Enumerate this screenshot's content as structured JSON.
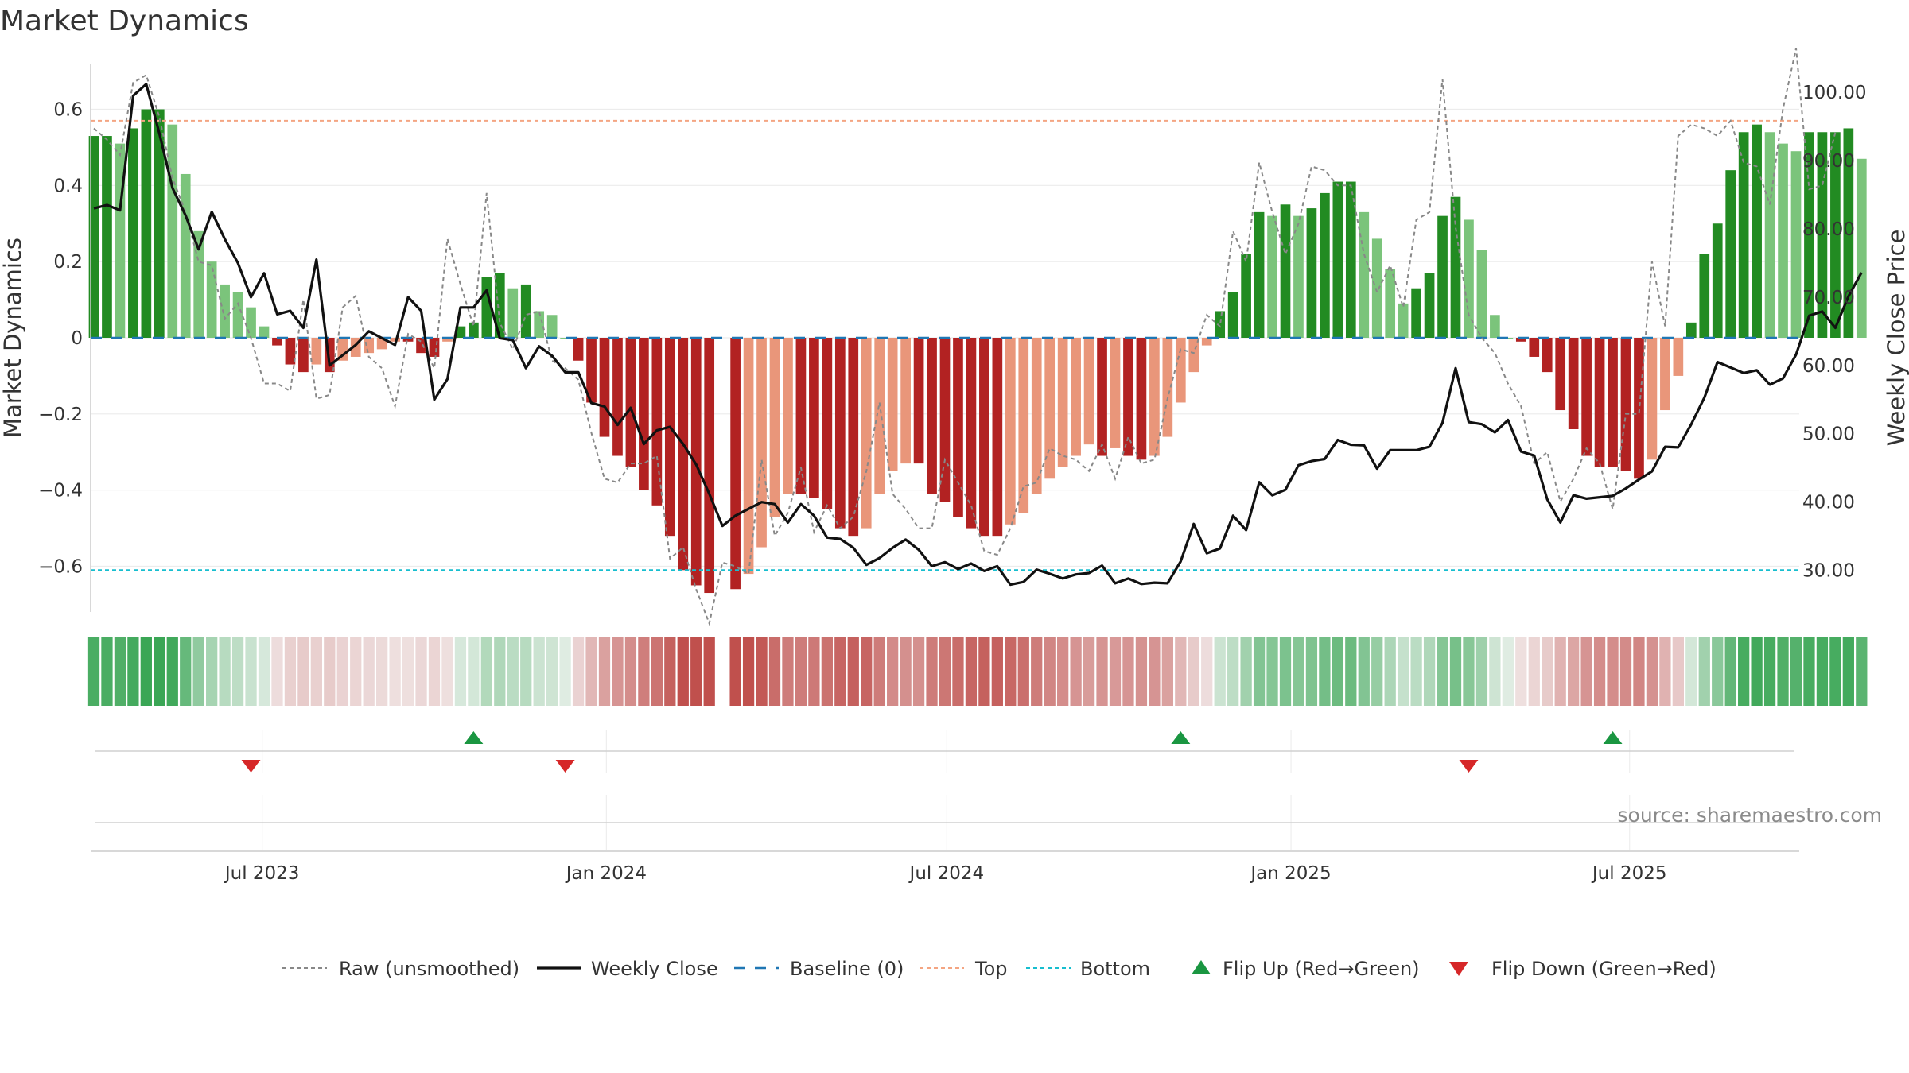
{
  "title": "Market Dynamics",
  "colors": {
    "strong_green": "#228B22",
    "light_green": "#7BC47B",
    "strong_red": "#B22222",
    "light_red": "#E9967A",
    "close": "#111111",
    "raw": "#888888",
    "baseline": "#1f77b4",
    "top": "#f4a582",
    "bottom": "#17becf",
    "flip_up": "#1a9641",
    "flip_down": "#d62728"
  },
  "chart_data": {
    "type": "bar",
    "x_start": "2023-04-02",
    "x_end": "2025-09-28",
    "left_axis": {
      "label": "Market Dynamics",
      "ylim": [
        -0.72,
        0.72
      ],
      "ticks": [
        -0.6,
        -0.4,
        -0.2,
        0,
        0.2,
        0.4,
        0.6
      ],
      "tick_labels": [
        "−0.6",
        "−0.4",
        "−0.2",
        "0",
        "0.2",
        "0.4",
        "0.6"
      ]
    },
    "right_axis": {
      "label": "Weekly Close Price",
      "ylim": [
        23.9,
        104.2
      ],
      "ticks": [
        30,
        40,
        50,
        60,
        70,
        80,
        90,
        100
      ],
      "tick_labels": [
        "30.00",
        "40.00",
        "50.00",
        "60.00",
        "70.00",
        "80.00",
        "90.00",
        "100.00"
      ]
    },
    "x_ticks": [
      {
        "date": "2023-07-01",
        "label": "Jul 2023"
      },
      {
        "date": "2024-01-01",
        "label": "Jan 2024"
      },
      {
        "date": "2024-07-01",
        "label": "Jul 2024"
      },
      {
        "date": "2025-01-01",
        "label": "Jan 2025"
      },
      {
        "date": "2025-07-01",
        "label": "Jul 2025"
      }
    ],
    "top_level": 0.57,
    "bottom_level": -0.61,
    "grid": true,
    "dynamics_values": [
      0.53,
      0.53,
      0.51,
      0.55,
      0.6,
      0.6,
      0.56,
      0.43,
      0.28,
      0.2,
      0.14,
      0.12,
      0.08,
      0.03,
      -0.02,
      -0.07,
      -0.09,
      -0.07,
      -0.09,
      -0.06,
      -0.05,
      -0.04,
      -0.03,
      -0.01,
      -0.01,
      -0.04,
      -0.05,
      -0.01,
      0.03,
      0.04,
      0.16,
      0.17,
      0.13,
      0.14,
      0.07,
      0.06,
      0,
      -0.06,
      -0.17,
      -0.26,
      -0.31,
      -0.34,
      -0.4,
      -0.44,
      -0.52,
      -0.61,
      -0.65,
      -0.67,
      null,
      -0.66,
      -0.62,
      -0.55,
      -0.47,
      -0.41,
      -0.41,
      -0.42,
      -0.45,
      -0.5,
      -0.52,
      -0.5,
      -0.41,
      -0.35,
      -0.33,
      -0.33,
      -0.41,
      -0.43,
      -0.47,
      -0.5,
      -0.52,
      -0.52,
      -0.49,
      -0.46,
      -0.41,
      -0.37,
      -0.34,
      -0.31,
      -0.28,
      -0.31,
      -0.29,
      -0.31,
      -0.32,
      -0.31,
      -0.26,
      -0.17,
      -0.09,
      -0.02,
      0.07,
      0.12,
      0.22,
      0.33,
      0.32,
      0.35,
      0.32,
      0.34,
      0.38,
      0.41,
      0.41,
      0.33,
      0.26,
      0.18,
      0.09,
      0.13,
      0.17,
      0.32,
      0.37,
      0.31,
      0.23,
      0.06,
      0,
      -0.01,
      -0.05,
      -0.09,
      -0.19,
      -0.24,
      -0.31,
      -0.34,
      -0.34,
      -0.35,
      -0.37,
      -0.32,
      -0.19,
      -0.1,
      0.04,
      0.22,
      0.3,
      0.44,
      0.54,
      0.56,
      0.54,
      0.51,
      0.49,
      0.54,
      0.54,
      0.54,
      0.55,
      0.47
    ],
    "raw_values": [
      0.55,
      0.52,
      0.48,
      0.67,
      0.69,
      0.58,
      0.42,
      0.33,
      0.2,
      0.19,
      0.05,
      0.09,
      0,
      -0.12,
      -0.12,
      -0.14,
      0.1,
      -0.16,
      -0.15,
      0.08,
      0.11,
      -0.05,
      -0.08,
      -0.18,
      0.01,
      -0.01,
      -0.08,
      0.26,
      0.14,
      0.03,
      0.38,
      0.04,
      -0.03,
      0.06,
      0.07,
      -0.06,
      -0.08,
      -0.11,
      -0.25,
      -0.37,
      -0.38,
      -0.33,
      -0.33,
      -0.31,
      -0.58,
      -0.55,
      -0.66,
      -0.75,
      -0.59,
      -0.6,
      -0.62,
      -0.32,
      -0.52,
      -0.46,
      -0.34,
      -0.51,
      -0.44,
      -0.5,
      -0.47,
      -0.35,
      -0.17,
      -0.41,
      -0.45,
      -0.5,
      -0.5,
      -0.32,
      -0.38,
      -0.44,
      -0.56,
      -0.57,
      -0.5,
      -0.39,
      -0.38,
      -0.29,
      -0.31,
      -0.32,
      -0.35,
      -0.28,
      -0.37,
      -0.26,
      -0.33,
      -0.32,
      -0.16,
      -0.03,
      -0.04,
      0.06,
      0.03,
      0.28,
      0.2,
      0.46,
      0.33,
      0.22,
      0.3,
      0.45,
      0.44,
      0.4,
      0.4,
      0.22,
      0.12,
      0.19,
      0.08,
      0.31,
      0.33,
      0.68,
      0.29,
      0.06,
      0.0,
      -0.04,
      -0.12,
      -0.18,
      -0.33,
      -0.3,
      -0.43,
      -0.37,
      -0.29,
      -0.33,
      -0.45,
      -0.2,
      -0.2,
      0.2,
      0.03,
      0.53,
      0.56,
      0.55,
      0.53,
      0.57,
      0.46,
      0.45,
      0.35,
      0.6,
      0.76,
      0.39,
      0.4,
      0.54
    ],
    "close_values": [
      83,
      83.5,
      82.7,
      99.5,
      101.2,
      94,
      86,
      82,
      77,
      82.5,
      78.5,
      75,
      70,
      73.5,
      67.5,
      68,
      65.5,
      75.5,
      60,
      61.5,
      63,
      65,
      64,
      63,
      70,
      68,
      55,
      58,
      68.5,
      68.5,
      71,
      64,
      63.7,
      59.6,
      62.8,
      61.4,
      59,
      59,
      54.5,
      54,
      51.3,
      53.8,
      48.5,
      50.5,
      51,
      48.5,
      45.5,
      41.2,
      36.5,
      38,
      39,
      40,
      39.7,
      37,
      39.7,
      38,
      34.8,
      34.6,
      33.3,
      30.8,
      31.8,
      33.3,
      34.5,
      33,
      30.6,
      31.2,
      30.2,
      31,
      29.9,
      30.6,
      27.9,
      28.3,
      30.1,
      29.5,
      28.8,
      29.4,
      29.6,
      30.7,
      28.1,
      28.8,
      28,
      28.2,
      28.1,
      31.3,
      36.8,
      32.5,
      33.2,
      38,
      35.9,
      42.9,
      41,
      41.8,
      45.4,
      46,
      46.3,
      49.1,
      48.4,
      48.3,
      44.9,
      47.6,
      47.6,
      47.6,
      48.1,
      51.6,
      59.6,
      51.7,
      51.4,
      50.2,
      52,
      47.4,
      46.8,
      40.4,
      37,
      41,
      40.5,
      40.7,
      40.9,
      42,
      43.3,
      44.5,
      48.1,
      48,
      51.4,
      55.3,
      60.5,
      59.7,
      58.9,
      59.3,
      57.2,
      58.1,
      61.6,
      67.3,
      67.9,
      65.5,
      70.1,
      73.6
    ],
    "flip_up_dates": [
      "2023-10-22",
      "2024-11-03",
      "2025-06-22"
    ],
    "flip_down_dates": [
      "2023-06-25",
      "2023-12-10",
      "2025-04-06"
    ],
    "source": "source: sharemaestro.com",
    "legend": {
      "position": "bottom",
      "entries": [
        {
          "key": "raw",
          "label": "Raw (unsmoothed)"
        },
        {
          "key": "close",
          "label": "Weekly Close"
        },
        {
          "key": "baseline",
          "label": "Baseline (0)"
        },
        {
          "key": "top",
          "label": "Top"
        },
        {
          "key": "bottom",
          "label": "Bottom"
        },
        {
          "key": "flip_up",
          "label": "Flip Up (Red→Green)"
        },
        {
          "key": "flip_down",
          "label": "Flip Down (Green→Red)"
        }
      ]
    }
  }
}
